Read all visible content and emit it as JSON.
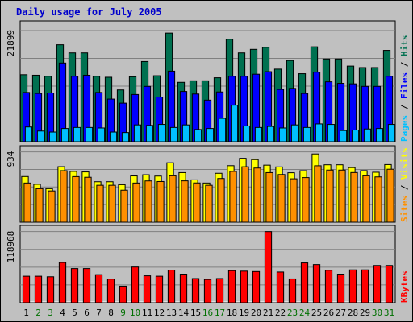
{
  "chart_data": {
    "title": "Daily usage for July 2005",
    "type": "bar",
    "days": [
      "1",
      "2",
      "3",
      "4",
      "5",
      "6",
      "7",
      "8",
      "9",
      "10",
      "11",
      "12",
      "13",
      "14",
      "15",
      "16",
      "17",
      "18",
      "19",
      "20",
      "21",
      "22",
      "23",
      "24",
      "25",
      "26",
      "27",
      "28",
      "29",
      "30",
      "31"
    ],
    "weekend_days": [
      "2",
      "3",
      "9",
      "10",
      "16",
      "17",
      "23",
      "24",
      "30",
      "31"
    ],
    "colors": {
      "background": "#c0c0c0",
      "title": "#0000cc",
      "hits": "#007050",
      "files": "#0000ff",
      "pages": "#00c0ff",
      "visits": "#ffff00",
      "sites": "#ff9000",
      "kbytes": "#ff0000",
      "weekday_label": "#000000",
      "weekend_label": "#007000"
    },
    "panels": [
      {
        "id": "hits-panel",
        "max_label": "21899",
        "ymax": 21899,
        "legend": [
          {
            "text": "Pages",
            "color": "#00c0ff"
          },
          {
            "text": "Files",
            "color": "#0000ff"
          },
          {
            "text": "Hits",
            "color": "#007050"
          }
        ],
        "series": [
          {
            "name": "Hits",
            "values": [
              13200,
              13100,
              12900,
              19100,
              17500,
              17500,
              12900,
              12700,
              10200,
              12800,
              15800,
              13000,
              21400,
              11700,
              12000,
              12000,
              12600,
              20200,
              17500,
              18200,
              18600,
              14300,
              16000,
              13400,
              18700,
              16300,
              16300,
              14900,
              14600,
              14600,
              18000
            ]
          },
          {
            "name": "Files",
            "values": [
              9700,
              9500,
              9600,
              15500,
              12900,
              13100,
              9700,
              8400,
              7600,
              9300,
              10900,
              8800,
              13900,
              9900,
              9400,
              8200,
              9800,
              12900,
              12900,
              13300,
              13800,
              10300,
              10500,
              9500,
              13700,
              11800,
              11500,
              11400,
              10900,
              10900,
              12900
            ]
          },
          {
            "name": "Pages",
            "values": [
              2900,
              2100,
              1900,
              2600,
              2800,
              2800,
              2700,
              1900,
              1800,
              3300,
              3200,
              3400,
              2800,
              3300,
              2400,
              2600,
              4600,
              7200,
              3100,
              2800,
              3000,
              2700,
              3300,
              2800,
              3500,
              3400,
              2200,
              2300,
              2500,
              2600,
              3400
            ]
          }
        ]
      },
      {
        "id": "visits-panel",
        "max_label": "934",
        "ymax": 934,
        "legend": [
          {
            "text": "Sites",
            "color": "#ff9000"
          },
          {
            "text": "Visits",
            "color": "#ffff00"
          }
        ],
        "series": [
          {
            "name": "Visits",
            "values": [
              606,
              503,
              445,
              737,
              674,
              667,
              537,
              537,
              498,
              614,
              630,
              612,
              789,
              658,
              562,
              520,
              649,
              750,
              848,
              831,
              757,
              734,
              656,
              684,
              906,
              762,
              762,
              725,
              685,
              663,
              765
            ]
          },
          {
            "name": "Sites",
            "values": [
              520,
              445,
              415,
              684,
              605,
              596,
              490,
              490,
              425,
              520,
              548,
              540,
              616,
              549,
              521,
              490,
              580,
              674,
              736,
              719,
              658,
              633,
              576,
              592,
              749,
              692,
              692,
              659,
              616,
              601,
              703
            ]
          }
        ]
      },
      {
        "id": "kbytes-panel",
        "max_label": "118968",
        "ymax": 118968,
        "legend": [
          {
            "text": "KBytes",
            "color": "#ff0000"
          }
        ],
        "series": [
          {
            "name": "KBytes",
            "values": [
              44300,
              44300,
              43400,
              67300,
              57100,
              57100,
              46900,
              39500,
              27700,
              59700,
              45000,
              44300,
              54500,
              47800,
              40400,
              38900,
              40400,
              53600,
              52800,
              52100,
              118968,
              51300,
              39800,
              66600,
              63800,
              54200,
              47800,
              54900,
              54900,
              62300,
              62300
            ]
          }
        ]
      }
    ]
  }
}
